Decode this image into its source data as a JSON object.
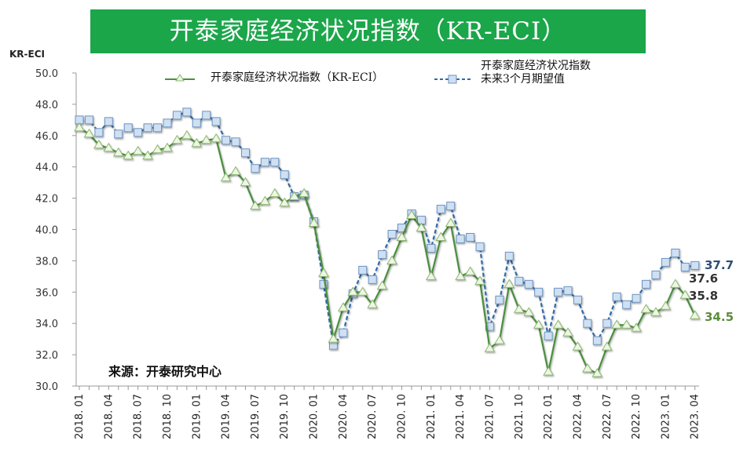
{
  "title": "开泰家庭经济状况指数（KR-ECI）",
  "source": "来源：开泰研究中心",
  "chart_data": {
    "type": "line",
    "title": "开泰家庭经济状况指数（KR-ECI）",
    "ylabel": "KR-ECI",
    "xlabel": "",
    "ylim": [
      30,
      50
    ],
    "yticks": [
      "30.0",
      "32.0",
      "34.0",
      "36.0",
      "38.0",
      "40.0",
      "42.0",
      "44.0",
      "46.0",
      "48.0",
      "50.0"
    ],
    "grid": false,
    "legend_position": "top",
    "x_tick_labels": [
      "2018. 01",
      "2018. 04",
      "2018. 07",
      "2018. 10",
      "2019. 01",
      "2019. 04",
      "2019. 07",
      "2019. 10",
      "2020. 01",
      "2020. 04",
      "2020. 07",
      "2020. 10",
      "2021. 01",
      "2021. 04",
      "2021. 07",
      "2021. 10",
      "2022. 01",
      "2022. 04",
      "2022. 07",
      "2022. 10",
      "2023. 01",
      "2023. 04"
    ],
    "x_range": [
      "2018.01",
      "2023.04"
    ],
    "x_frequency": "monthly",
    "series": [
      {
        "name": "开泰家庭经济状况指数（KR-ECI）",
        "color": "#4a8f3c",
        "marker": "triangle",
        "line_style": "solid",
        "values": [
          46.5,
          46.1,
          45.4,
          45.2,
          44.9,
          44.7,
          45.0,
          44.7,
          45.1,
          45.2,
          45.7,
          46.0,
          45.5,
          45.7,
          45.8,
          43.3,
          43.7,
          43.0,
          41.5,
          41.8,
          42.3,
          41.7,
          42.1,
          42.3,
          40.4,
          37.2,
          33.0,
          35.0,
          36.0,
          36.0,
          35.2,
          36.4,
          38.0,
          39.5,
          40.9,
          40.1,
          37.0,
          39.5,
          40.4,
          37.0,
          37.3,
          36.7,
          32.4,
          32.9,
          36.5,
          34.9,
          34.7,
          33.9,
          30.9,
          33.9,
          33.4,
          32.5,
          31.1,
          30.8,
          32.5,
          33.9,
          33.9,
          33.7,
          34.9,
          34.7,
          35.1,
          36.5,
          35.8,
          34.5
        ],
        "end_labels": [
          "35.8",
          "34.5"
        ]
      },
      {
        "name": "开泰家庭经济状况指数未来3个月期望值",
        "legend_lines": [
          "开泰家庭经济状况指数",
          "未来3个月期望值"
        ],
        "color": "#2f6aa8",
        "marker": "square",
        "line_style": "dashed",
        "values": [
          47.0,
          47.0,
          46.2,
          46.9,
          46.1,
          46.5,
          46.2,
          46.5,
          46.5,
          46.8,
          47.3,
          47.5,
          46.8,
          47.3,
          46.9,
          45.7,
          45.6,
          44.9,
          43.9,
          44.3,
          44.3,
          43.5,
          42.1,
          42.2,
          40.5,
          36.5,
          32.6,
          33.4,
          35.9,
          37.4,
          36.8,
          38.4,
          39.7,
          40.1,
          41.0,
          40.6,
          38.8,
          41.3,
          41.5,
          39.4,
          39.5,
          38.9,
          33.8,
          35.5,
          38.3,
          36.7,
          36.5,
          36.0,
          33.2,
          36.0,
          36.1,
          35.5,
          34.0,
          32.9,
          34.0,
          35.7,
          35.2,
          35.6,
          36.5,
          37.1,
          37.9,
          38.5,
          37.6,
          37.7
        ],
        "end_labels": [
          "37.7",
          "37.6"
        ]
      }
    ]
  }
}
